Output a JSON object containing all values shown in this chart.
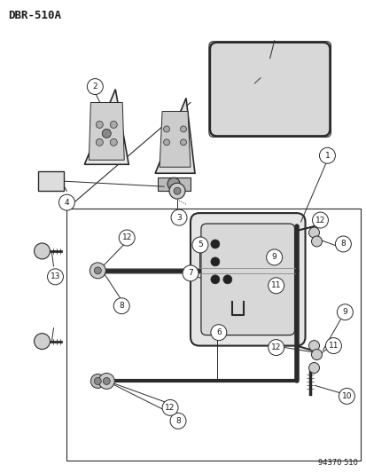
{
  "title": "DBR-510A",
  "footer": "94370 510",
  "bg_color": "#ffffff",
  "line_color": "#2a2a2a",
  "text_color": "#1a1a1a",
  "circle_bg": "#ffffff",
  "fig_width": 4.14,
  "fig_height": 5.33,
  "dpi": 100
}
